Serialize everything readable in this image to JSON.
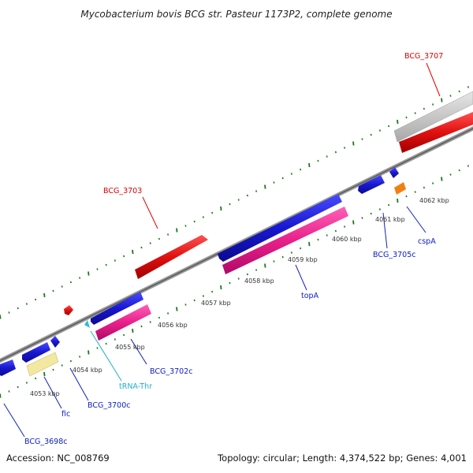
{
  "title": "Mycobacterium bovis BCG str. Pasteur 1173P2, complete genome",
  "footer": {
    "accession": "Accession: NC_008769",
    "summary": "Topology: circular; Length: 4,374,522 bp; Genes: 4,001"
  },
  "kbp_labels": [
    "4053 kbp",
    "4054 kbp",
    "4055 kbp",
    "4056 kbp",
    "4057 kbp",
    "4058 kbp",
    "4059 kbp",
    "4060 kbp",
    "4061 kbp",
    "4062 kbp"
  ],
  "gene_labels": [
    {
      "text": "BCG_3707",
      "color": "#e00000"
    },
    {
      "text": "BCG_3703",
      "color": "#e00000"
    },
    {
      "text": "BCG_3705c",
      "color": "#1020c0"
    },
    {
      "text": "cspA",
      "color": "#1020c0"
    },
    {
      "text": "topA",
      "color": "#1020c0"
    },
    {
      "text": "BCG_3702c",
      "color": "#1020c0"
    },
    {
      "text": "tRNA-Thr",
      "color": "#20b0d0"
    },
    {
      "text": "BCG_3700c",
      "color": "#1020c0"
    },
    {
      "text": "fic",
      "color": "#1020c0"
    },
    {
      "text": "BCG_3698c",
      "color": "#1020c0"
    }
  ],
  "colors": {
    "forward_cds": "#e01010",
    "reverse_cds": "#1818d0",
    "rna": "#e8208a",
    "pseudo": "#f2e8a0",
    "trna": "#30b8e0",
    "orange": "#f08010",
    "grey_feature": "#c8c8c8",
    "backbone": "#7a7a7a",
    "ticks": "#1a7a1a"
  }
}
